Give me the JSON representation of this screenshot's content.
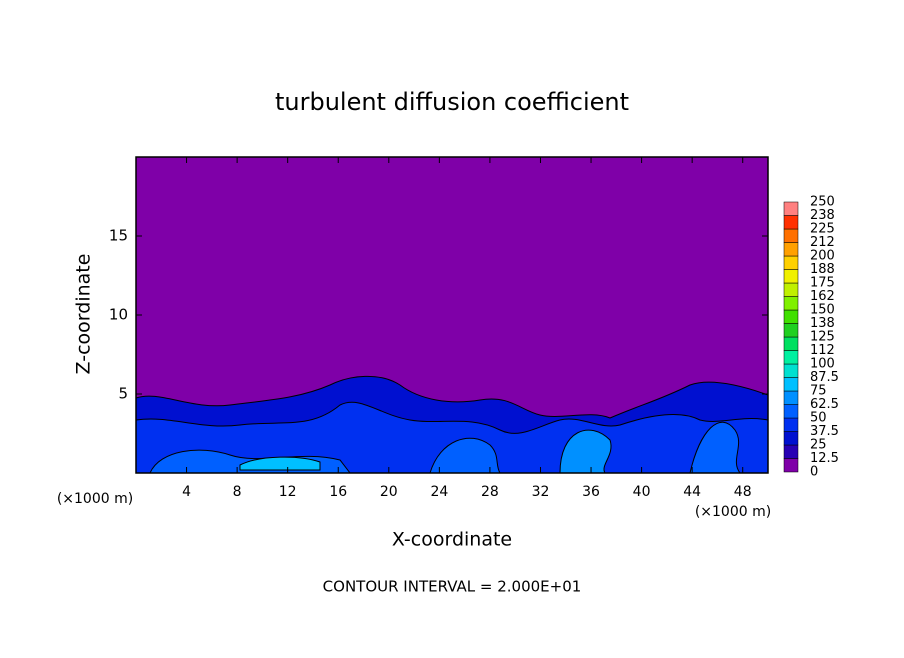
{
  "chart_data": {
    "type": "contour",
    "title": "turbulent diffusion coefficient",
    "x_label": "X-coordinate",
    "y_label": "Z-coordinate",
    "x_unit_label": "(×1000 m)",
    "footer": "CONTOUR INTERVAL = 2.000E+01",
    "xlim": [
      0,
      50
    ],
    "xticks": [
      4,
      8,
      12,
      16,
      20,
      24,
      28,
      32,
      36,
      40,
      44,
      48
    ],
    "ylim": [
      0,
      20
    ],
    "yticks": [
      5,
      10,
      15
    ],
    "background_color": "#7f00a8",
    "colorbar": {
      "levels": [
        0,
        12.5,
        25,
        37.5,
        50,
        62.5,
        75,
        87.5,
        100,
        {
          "value": 112.5,
          "label": "112"
        },
        125,
        {
          "value": 137.5,
          "label": "138"
        },
        150,
        {
          "value": 162.5,
          "label": "162"
        },
        175,
        {
          "value": 187.5,
          "label": "188"
        },
        200,
        {
          "value": 212.5,
          "label": "212"
        },
        225,
        {
          "value": 237.5,
          "label": "238"
        },
        250
      ],
      "colors": [
        "#7f00a8",
        "#2800b4",
        "#0010d0",
        "#0030f0",
        "#0060ff",
        "#0090ff",
        "#00c0ff",
        "#00e0d0",
        "#00f0a0",
        "#00e060",
        "#20d020",
        "#40e000",
        "#80f000",
        "#c0f000",
        "#f0f000",
        "#ffd000",
        "#ffa000",
        "#ff7000",
        "#ff3000",
        "#ff8080"
      ]
    }
  }
}
